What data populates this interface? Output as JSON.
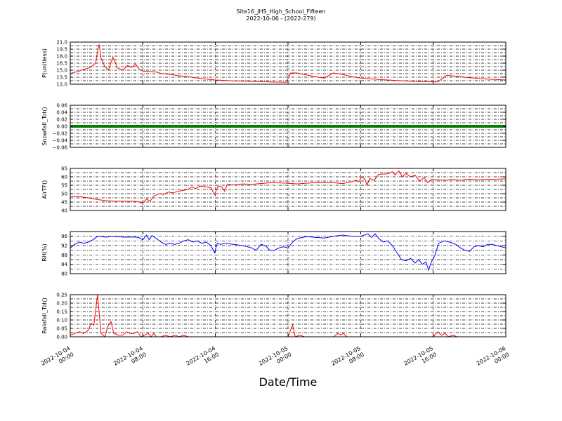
{
  "chart_data": {
    "type": "line",
    "title_line1": "Site16_JHS_High_School_Fifteen",
    "title_line2": "2022-10-06 - (2022-279)",
    "xlabel": "Date/Time",
    "x_range": [
      "2022-10-04 00:00",
      "2022-10-06 00:00"
    ],
    "x_ticks": [
      {
        "l1": "2022-10-04",
        "l2": "00:00"
      },
      {
        "l1": "2022-10-04",
        "l2": "08:00"
      },
      {
        "l1": "2022-10-04",
        "l2": "16:00"
      },
      {
        "l1": "2022-10-05",
        "l2": "00:00"
      },
      {
        "l1": "2022-10-05",
        "l2": "08:00"
      },
      {
        "l1": "2022-10-05",
        "l2": "16:00"
      },
      {
        "l1": "2022-10-06",
        "l2": "00:00"
      }
    ],
    "grid": true,
    "panels": [
      {
        "ylabel": "P(unitless)",
        "color": "#ff0000",
        "ylim": [
          12.0,
          21.0
        ],
        "yticks": [
          "12.0",
          "13.5",
          "15.0",
          "16.5",
          "18.0",
          "19.5",
          "21.0"
        ],
        "ytick_values": [
          12.0,
          13.5,
          15.0,
          16.5,
          18.0,
          19.5,
          21.0
        ],
        "grid_values": [
          12.0,
          13.5,
          15.0,
          16.5,
          18.0,
          19.5,
          21.0,
          12.75,
          14.25,
          15.75,
          17.25,
          18.75,
          20.25
        ],
        "points": [
          [
            0,
            14.3
          ],
          [
            1,
            14.8
          ],
          [
            1.5,
            15.2
          ],
          [
            2,
            15.4
          ],
          [
            2.5,
            16.0
          ],
          [
            2.8,
            16.5
          ],
          [
            3,
            19.0
          ],
          [
            3.2,
            20.5
          ],
          [
            3.4,
            17.5
          ],
          [
            3.8,
            15.8
          ],
          [
            4.2,
            15.0
          ],
          [
            4.7,
            17.8
          ],
          [
            5.2,
            15.5
          ],
          [
            5.8,
            15.0
          ],
          [
            6.3,
            16.0
          ],
          [
            6.8,
            15.6
          ],
          [
            7.2,
            16.3
          ],
          [
            7.6,
            15.2
          ],
          [
            8,
            14.8
          ],
          [
            8.8,
            14.7
          ],
          [
            9.5,
            14.6
          ],
          [
            10,
            14.3
          ],
          [
            11,
            14.1
          ],
          [
            12,
            13.8
          ],
          [
            13,
            13.6
          ],
          [
            14,
            13.3
          ],
          [
            15,
            13.1
          ],
          [
            16,
            12.9
          ],
          [
            18,
            12.7
          ],
          [
            20,
            12.6
          ],
          [
            22,
            12.5
          ],
          [
            23.8,
            12.4
          ],
          [
            24.3,
            14.4
          ],
          [
            25,
            14.4
          ],
          [
            26,
            14.0
          ],
          [
            27,
            13.6
          ],
          [
            28,
            13.3
          ],
          [
            29,
            14.4
          ],
          [
            30,
            14.1
          ],
          [
            31,
            13.6
          ],
          [
            32,
            13.3
          ],
          [
            34,
            13.0
          ],
          [
            36,
            12.8
          ],
          [
            38,
            12.6
          ],
          [
            40.5,
            12.5
          ],
          [
            41.5,
            13.9
          ],
          [
            43,
            13.6
          ],
          [
            44,
            13.4
          ],
          [
            46,
            13.1
          ],
          [
            48,
            12.9
          ]
        ]
      },
      {
        "ylabel": "Snowfall_Tot()",
        "color": "#008000",
        "ylim": [
          -0.06,
          0.06
        ],
        "yticks": [
          "−0.06",
          "−0.04",
          "−0.02",
          "0.00",
          "0.02",
          "0.04",
          "0.06"
        ],
        "ytick_values": [
          -0.06,
          -0.04,
          -0.02,
          0.0,
          0.02,
          0.04,
          0.06
        ],
        "grid_values": [
          -0.06,
          -0.04,
          -0.02,
          0.0,
          0.02,
          0.04,
          0.06,
          -0.05,
          -0.03,
          -0.01,
          0.01,
          0.03,
          0.05
        ],
        "points": [
          [
            0,
            0
          ],
          [
            48,
            0
          ]
        ]
      },
      {
        "ylabel": "AirTF()",
        "color": "#ff0000",
        "ylim": [
          40,
          65
        ],
        "yticks": [
          "40",
          "45",
          "50",
          "55",
          "60",
          "65"
        ],
        "ytick_values": [
          40,
          45,
          50,
          55,
          60,
          65
        ],
        "grid_values": [
          40,
          45,
          50,
          55,
          60,
          65,
          42.5,
          47.5,
          52.5,
          57.5,
          62.5
        ],
        "points": [
          [
            0,
            48.5
          ],
          [
            1,
            48.2
          ],
          [
            2,
            47.5
          ],
          [
            3,
            46.5
          ],
          [
            4,
            45.8
          ],
          [
            5,
            45.6
          ],
          [
            6,
            45.6
          ],
          [
            7,
            45.5
          ],
          [
            7.5,
            45.2
          ],
          [
            8,
            44.2
          ],
          [
            8.4,
            46.8
          ],
          [
            8.8,
            45.5
          ],
          [
            9.2,
            48.5
          ],
          [
            9.8,
            50.0
          ],
          [
            10.3,
            49.5
          ],
          [
            10.8,
            51.0
          ],
          [
            11.3,
            50.5
          ],
          [
            12,
            51.5
          ],
          [
            13,
            52.5
          ],
          [
            13.4,
            54.0
          ],
          [
            13.8,
            53.0
          ],
          [
            14.3,
            54.5
          ],
          [
            15,
            54.0
          ],
          [
            15.5,
            53.5
          ],
          [
            15.9,
            49.5
          ],
          [
            16.3,
            54.5
          ],
          [
            16.7,
            54.0
          ],
          [
            17,
            51.5
          ],
          [
            17.3,
            55.5
          ],
          [
            18,
            55.2
          ],
          [
            19,
            55.8
          ],
          [
            20,
            55.6
          ],
          [
            21,
            56.0
          ],
          [
            22,
            56.5
          ],
          [
            23,
            56.4
          ],
          [
            24,
            56.2
          ],
          [
            25,
            55.8
          ],
          [
            26,
            56.2
          ],
          [
            27,
            56.6
          ],
          [
            28,
            56.5
          ],
          [
            29,
            56.5
          ],
          [
            30,
            56.0
          ],
          [
            31,
            57.0
          ],
          [
            31.5,
            58.0
          ],
          [
            31.8,
            57.0
          ],
          [
            32.1,
            60.0
          ],
          [
            32.5,
            58.5
          ],
          [
            32.7,
            55.0
          ],
          [
            33,
            59.0
          ],
          [
            33.5,
            58.0
          ],
          [
            34,
            61.5
          ],
          [
            35,
            61.8
          ],
          [
            35.5,
            63.0
          ],
          [
            35.8,
            61.0
          ],
          [
            36.2,
            63.5
          ],
          [
            36.6,
            60.0
          ],
          [
            37,
            62.0
          ],
          [
            37.5,
            60.0
          ],
          [
            38,
            61.0
          ],
          [
            38.5,
            57.5
          ],
          [
            39,
            59.5
          ],
          [
            39.4,
            56.5
          ],
          [
            39.8,
            58.5
          ],
          [
            40.5,
            58.2
          ],
          [
            41.5,
            58.0
          ],
          [
            42,
            58.5
          ],
          [
            43,
            58.0
          ],
          [
            44,
            58.6
          ],
          [
            45,
            58.2
          ],
          [
            46,
            58.5
          ],
          [
            47,
            58.6
          ],
          [
            48,
            58.8
          ]
        ]
      },
      {
        "ylabel": "RH(%)",
        "color": "#0000ff",
        "ylim": [
          80,
          98
        ],
        "yticks": [
          "80",
          "84",
          "88",
          "92",
          "96"
        ],
        "ytick_values": [
          80,
          84,
          88,
          92,
          96
        ],
        "grid_values": [
          80,
          84,
          88,
          92,
          96,
          82,
          86,
          90,
          94
        ],
        "points": [
          [
            0,
            91.0
          ],
          [
            0.5,
            92.5
          ],
          [
            1,
            93.5
          ],
          [
            1.5,
            93.0
          ],
          [
            2,
            93.5
          ],
          [
            2.5,
            94.5
          ],
          [
            3,
            96.0
          ],
          [
            4,
            95.6
          ],
          [
            4.5,
            96.0
          ],
          [
            5,
            95.8
          ],
          [
            6,
            95.6
          ],
          [
            7,
            95.7
          ],
          [
            7.5,
            95.5
          ],
          [
            8,
            94.5
          ],
          [
            8.4,
            96.5
          ],
          [
            8.7,
            94.5
          ],
          [
            9,
            96.3
          ],
          [
            9.5,
            95.0
          ],
          [
            10,
            93.5
          ],
          [
            10.5,
            92.5
          ],
          [
            11,
            93.0
          ],
          [
            11.5,
            92.5
          ],
          [
            12,
            93.0
          ],
          [
            12.5,
            94.0
          ],
          [
            13,
            94.5
          ],
          [
            13.5,
            93.5
          ],
          [
            14,
            94.0
          ],
          [
            14.5,
            93.0
          ],
          [
            15,
            93.5
          ],
          [
            15.5,
            92.0
          ],
          [
            15.9,
            89.0
          ],
          [
            16.2,
            93.0
          ],
          [
            16.6,
            92.5
          ],
          [
            17,
            93.0
          ],
          [
            18,
            92.5
          ],
          [
            19,
            92.0
          ],
          [
            20,
            91.0
          ],
          [
            20.5,
            90.0
          ],
          [
            21,
            92.5
          ],
          [
            21.5,
            92.0
          ],
          [
            22,
            90.0
          ],
          [
            22.5,
            90.0
          ],
          [
            23,
            91.0
          ],
          [
            23.5,
            91.5
          ],
          [
            24,
            91.0
          ],
          [
            24.5,
            93.5
          ],
          [
            25,
            95.0
          ],
          [
            26,
            95.8
          ],
          [
            27,
            95.5
          ],
          [
            28,
            95.2
          ],
          [
            29,
            96.0
          ],
          [
            30,
            96.5
          ],
          [
            31,
            96.0
          ],
          [
            32,
            96.0
          ],
          [
            32.8,
            97.0
          ],
          [
            33.2,
            95.5
          ],
          [
            33.6,
            97.0
          ],
          [
            34,
            95.0
          ],
          [
            34.5,
            93.5
          ],
          [
            35,
            94.0
          ],
          [
            35.5,
            92.0
          ],
          [
            36,
            89.0
          ],
          [
            36.5,
            86.0
          ],
          [
            37,
            85.5
          ],
          [
            37.5,
            86.5
          ],
          [
            38,
            84.5
          ],
          [
            38.4,
            86.0
          ],
          [
            38.8,
            84.0
          ],
          [
            39.2,
            85.0
          ],
          [
            39.5,
            81.5
          ],
          [
            39.8,
            85.0
          ],
          [
            40.2,
            88.0
          ],
          [
            40.6,
            93.0
          ],
          [
            41.2,
            94.0
          ],
          [
            41.8,
            93.5
          ],
          [
            42.5,
            92.5
          ],
          [
            43,
            91.0
          ],
          [
            43.5,
            90.0
          ],
          [
            44,
            89.5
          ],
          [
            44.5,
            91.5
          ],
          [
            45,
            92.0
          ],
          [
            45.5,
            91.5
          ],
          [
            46,
            92.5
          ],
          [
            46.5,
            92.5
          ],
          [
            47,
            92.0
          ],
          [
            48,
            91.0
          ]
        ]
      },
      {
        "ylabel": "Rainfall_Tot()",
        "color": "#ff0000",
        "ylim": [
          0.0,
          0.25
        ],
        "yticks": [
          "0.00",
          "0.05",
          "0.10",
          "0.15",
          "0.20",
          "0.25"
        ],
        "ytick_values": [
          0.0,
          0.05,
          0.1,
          0.15,
          0.2,
          0.25
        ],
        "grid_values": [
          0.0,
          0.05,
          0.1,
          0.15,
          0.2,
          0.25,
          0.025,
          0.075,
          0.125,
          0.175,
          0.225
        ],
        "points": [
          [
            0,
            0.01
          ],
          [
            0.5,
            0.02
          ],
          [
            1,
            0.03
          ],
          [
            1.5,
            0.02
          ],
          [
            2,
            0.04
          ],
          [
            2.3,
            0.08
          ],
          [
            2.6,
            0.07
          ],
          [
            3,
            0.25
          ],
          [
            3.4,
            0.02
          ],
          [
            3.8,
            0.0
          ],
          [
            4.2,
            0.07
          ],
          [
            4.5,
            0.09
          ],
          [
            4.8,
            0.02
          ],
          [
            5.3,
            0.01
          ],
          [
            5.8,
            0.01
          ],
          [
            6.2,
            0.03
          ],
          [
            6.6,
            0.02
          ],
          [
            7,
            0.02
          ],
          [
            7.4,
            0.03
          ],
          [
            7.8,
            0.0
          ],
          [
            8.2,
            0.01
          ],
          [
            8.6,
            0.02
          ],
          [
            8.9,
            0.0
          ],
          [
            9.2,
            0.02
          ],
          [
            9.5,
            0.0
          ],
          [
            10,
            0.0
          ],
          [
            10.5,
            0.01
          ],
          [
            11,
            0.0
          ],
          [
            11.6,
            0.01
          ],
          [
            12,
            0.0
          ],
          [
            12.5,
            0.01
          ],
          [
            13,
            0.0
          ],
          [
            14,
            0.0
          ],
          [
            15,
            0.0
          ],
          [
            24,
            0.0
          ],
          [
            24.5,
            0.07
          ],
          [
            24.8,
            0.0
          ],
          [
            25.3,
            0.01
          ],
          [
            25.8,
            0.0
          ],
          [
            29,
            0.0
          ],
          [
            29.5,
            0.02
          ],
          [
            29.8,
            0.01
          ],
          [
            30.1,
            0.02
          ],
          [
            30.5,
            0.0
          ],
          [
            33,
            0.0
          ],
          [
            40,
            0.0
          ],
          [
            40.5,
            0.03
          ],
          [
            40.9,
            0.01
          ],
          [
            41.3,
            0.02
          ],
          [
            41.7,
            0.0
          ],
          [
            42.2,
            0.01
          ],
          [
            42.6,
            0.0
          ],
          [
            48,
            0.0
          ]
        ]
      }
    ]
  }
}
